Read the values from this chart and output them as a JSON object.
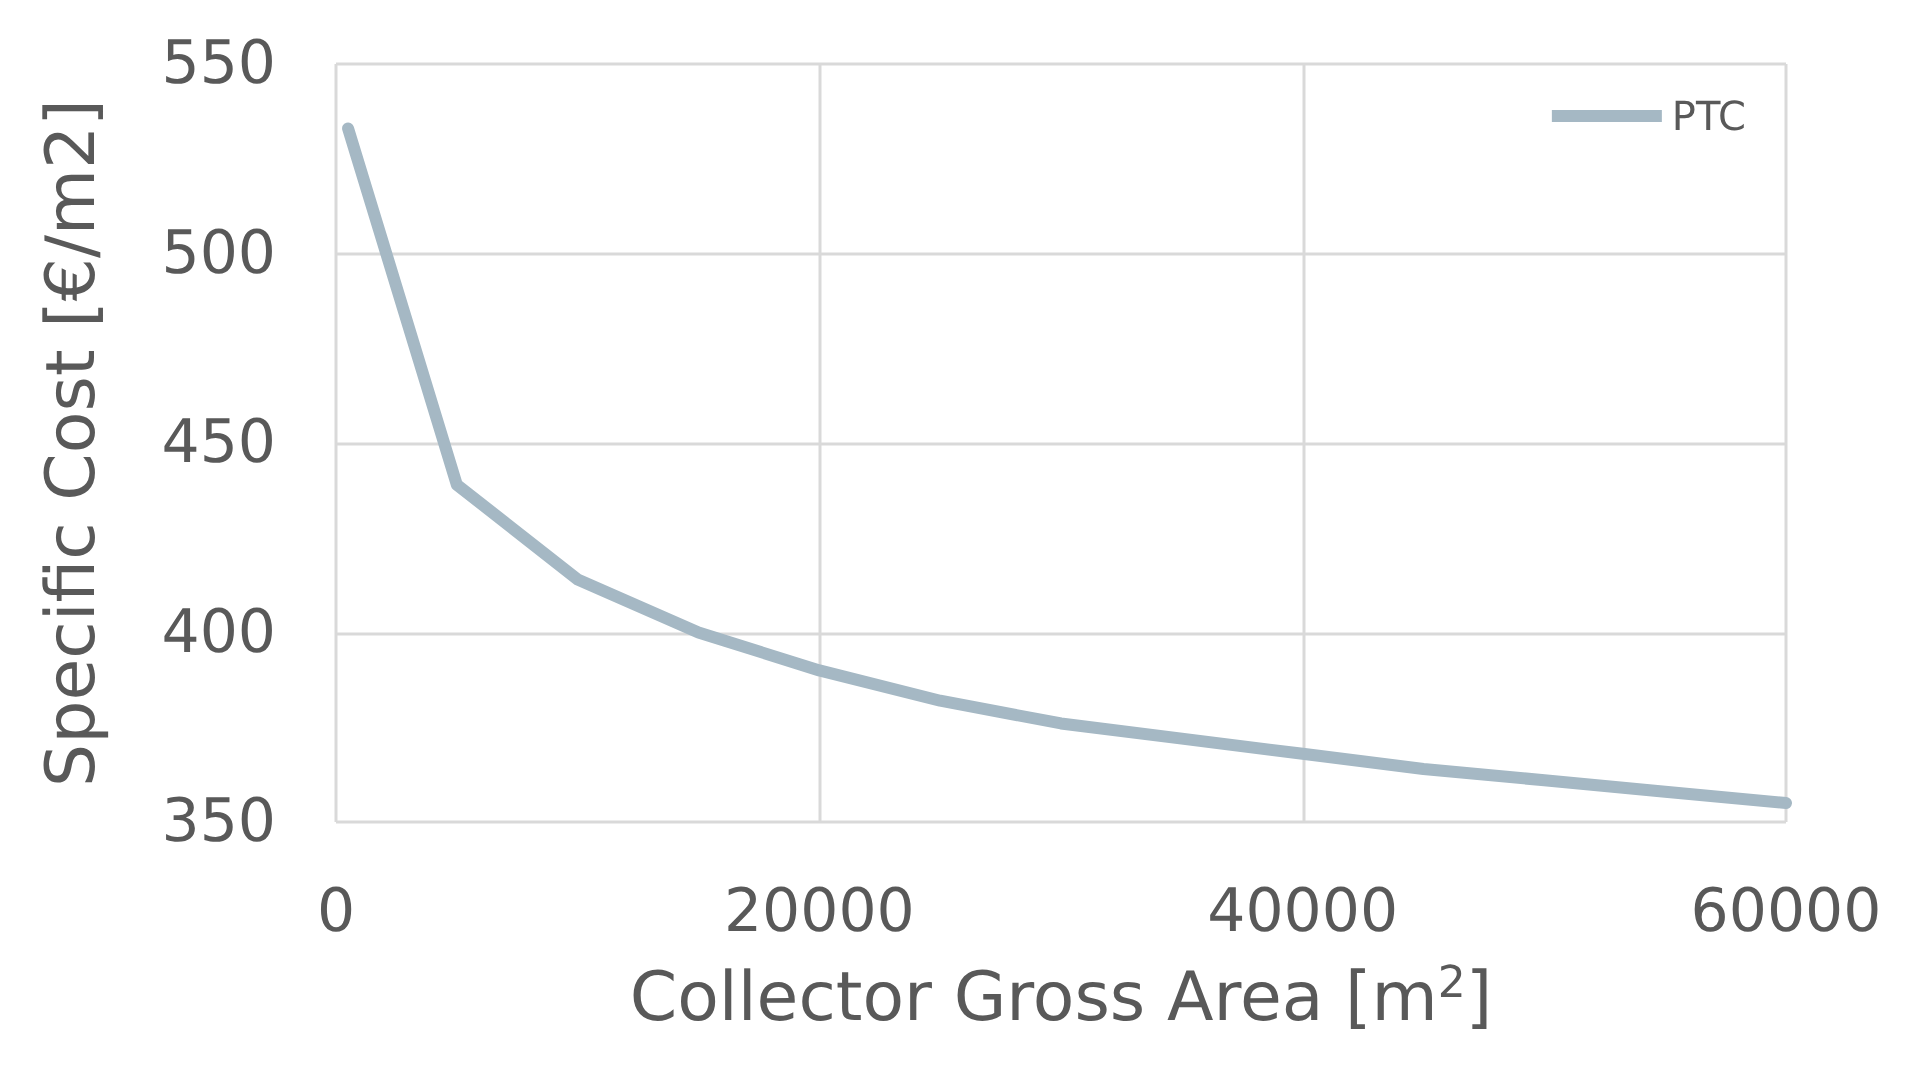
{
  "chart_data": {
    "type": "line",
    "xlabel": "Collector Gross Area [m$^{2}$]",
    "ylabel": "Specific Cost [€/m2]",
    "x": [
      500,
      5000,
      10000,
      15000,
      20000,
      25000,
      30000,
      35000,
      40000,
      45000,
      50000,
      55000,
      60000
    ],
    "series": [
      {
        "name": "PTC",
        "color": "#a5b8c4",
        "values": [
          533,
          439,
          414,
          400,
          390,
          382,
          376,
          372,
          368,
          364,
          361,
          358,
          355
        ]
      }
    ],
    "xlim": [
      0,
      60000
    ],
    "xticks": [
      0,
      20000,
      40000,
      60000
    ],
    "ylim": [
      350,
      550
    ],
    "yticks": [
      350,
      400,
      450,
      500,
      550
    ],
    "grid": true,
    "legend": "top right",
    "marker": "none",
    "line_style": "solid"
  }
}
